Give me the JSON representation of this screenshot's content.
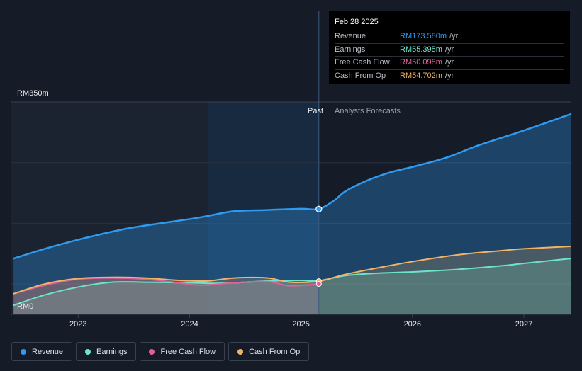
{
  "tooltip": {
    "date": "Feb 28 2025",
    "rows": [
      {
        "label": "Revenue",
        "value": "RM173.580m",
        "unit": "/yr",
        "color": "#2e9bf0"
      },
      {
        "label": "Earnings",
        "value": "RM55.395m",
        "unit": "/yr",
        "color": "#6fe3c9"
      },
      {
        "label": "Free Cash Flow",
        "value": "RM50.098m",
        "unit": "/yr",
        "color": "#e0609a"
      },
      {
        "label": "Cash From Op",
        "value": "RM54.702m",
        "unit": "/yr",
        "color": "#f2b366"
      }
    ]
  },
  "legend": [
    {
      "label": "Revenue",
      "color": "#2e9bf0"
    },
    {
      "label": "Earnings",
      "color": "#6fe3c9"
    },
    {
      "label": "Free Cash Flow",
      "color": "#e0609a"
    },
    {
      "label": "Cash From Op",
      "color": "#f2b366"
    }
  ],
  "chart_data": {
    "type": "area",
    "y_top_label": "RM350m",
    "y_bottom_label": "RM0",
    "ylim": [
      0,
      350
    ],
    "xlim": [
      2022.4,
      2027.42
    ],
    "x_ticks": [
      "2023",
      "2024",
      "2025",
      "2026",
      "2027"
    ],
    "x_tick_values": [
      2023,
      2024,
      2025,
      2026,
      2027
    ],
    "past_label": "Past",
    "forecast_label": "Analysts Forecasts",
    "divider_x": 2025.16,
    "highlight_start_x": 2024.16,
    "grid": true,
    "series": [
      {
        "name": "Revenue",
        "color": "#2e9bf0",
        "x": [
          2022.42,
          2022.7,
          2023.0,
          2023.4,
          2023.7,
          2024.0,
          2024.16,
          2024.4,
          2024.7,
          2025.0,
          2025.16,
          2025.3,
          2025.4,
          2025.6,
          2025.8,
          2026.0,
          2026.3,
          2026.6,
          2027.0,
          2027.42
        ],
        "y": [
          92,
          108,
          123,
          140,
          149,
          157,
          162,
          170,
          172,
          174,
          173.58,
          188,
          203,
          221,
          234,
          243,
          258,
          279,
          303,
          330
        ]
      },
      {
        "name": "Earnings",
        "color": "#6fe3c9",
        "x": [
          2022.42,
          2022.7,
          2023.0,
          2023.3,
          2023.6,
          2024.0,
          2024.2,
          2024.4,
          2024.7,
          2025.0,
          2025.16,
          2025.4,
          2025.7,
          2026.0,
          2026.4,
          2026.8,
          2027.0,
          2027.42
        ],
        "y": [
          15,
          32,
          45,
          53,
          53,
          52,
          51,
          52,
          55,
          56,
          55.4,
          64,
          68,
          70,
          74,
          80,
          84,
          92
        ]
      },
      {
        "name": "Free Cash Flow",
        "color": "#e0609a",
        "x": [
          2022.42,
          2022.7,
          2023.0,
          2023.3,
          2023.6,
          2023.9,
          2024.1,
          2024.4,
          2024.7,
          2024.9,
          2025.16
        ],
        "y": [
          34,
          48,
          58,
          60,
          58,
          52,
          48,
          52,
          54,
          47,
          50.1
        ]
      },
      {
        "name": "Cash From Op",
        "color": "#f2b366",
        "x": [
          2022.42,
          2022.7,
          2023.0,
          2023.3,
          2023.6,
          2023.9,
          2024.16,
          2024.4,
          2024.7,
          2024.9,
          2025.16,
          2025.4,
          2025.7,
          2026.0,
          2026.4,
          2026.8,
          2027.0,
          2027.42
        ],
        "y": [
          34,
          50,
          59,
          61,
          60,
          56,
          55,
          60,
          60,
          53,
          54.7,
          66,
          77,
          87,
          98,
          105,
          108,
          112
        ]
      }
    ]
  }
}
